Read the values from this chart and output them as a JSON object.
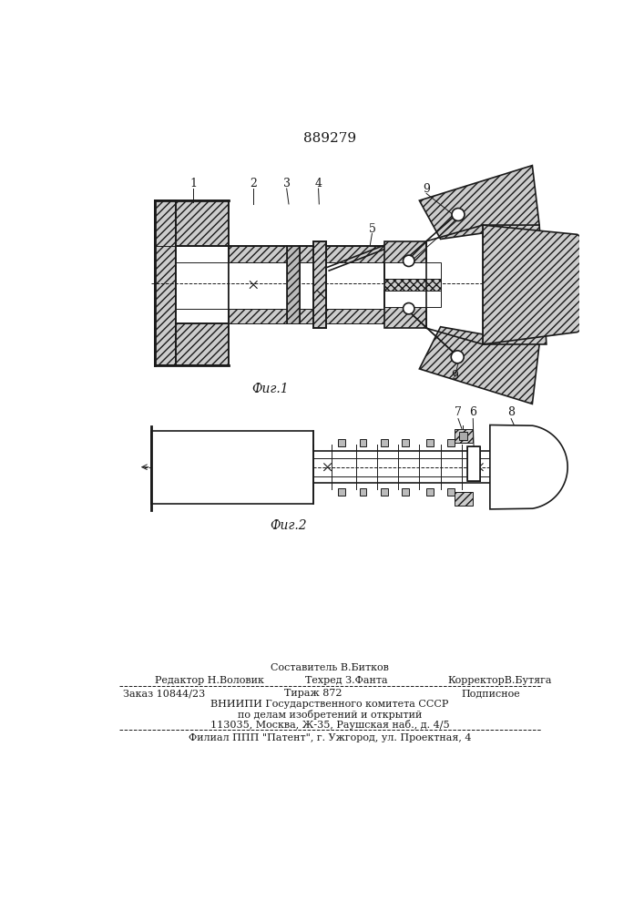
{
  "patent_number": "889279",
  "background_color": "#ffffff",
  "line_color": "#1a1a1a",
  "fig1_label": "Фиг.1",
  "fig2_label": "Фиг.2",
  "footer": {
    "composer_label": "Составитель В.Битков",
    "editor_label": "Редактор Н.Воловик",
    "techred_label": "Техред З.Фанта",
    "corrector_label": "КорректорВ.Бутяга",
    "order_label": "Заказ 10844/23",
    "tirazh_label": "Тираж 872",
    "podpisnoe_label": "Подписное",
    "vniip1": "ВНИИПИ Государственного комитета СССР",
    "vniip2": "по делам изобретений и открытий",
    "vniip3": "113035, Москва, Ж-35, Раушская наб., д. 4/5",
    "filial": "Филиал ППП \"Патент\", г. Ужгород, ул. Проектная, 4"
  }
}
